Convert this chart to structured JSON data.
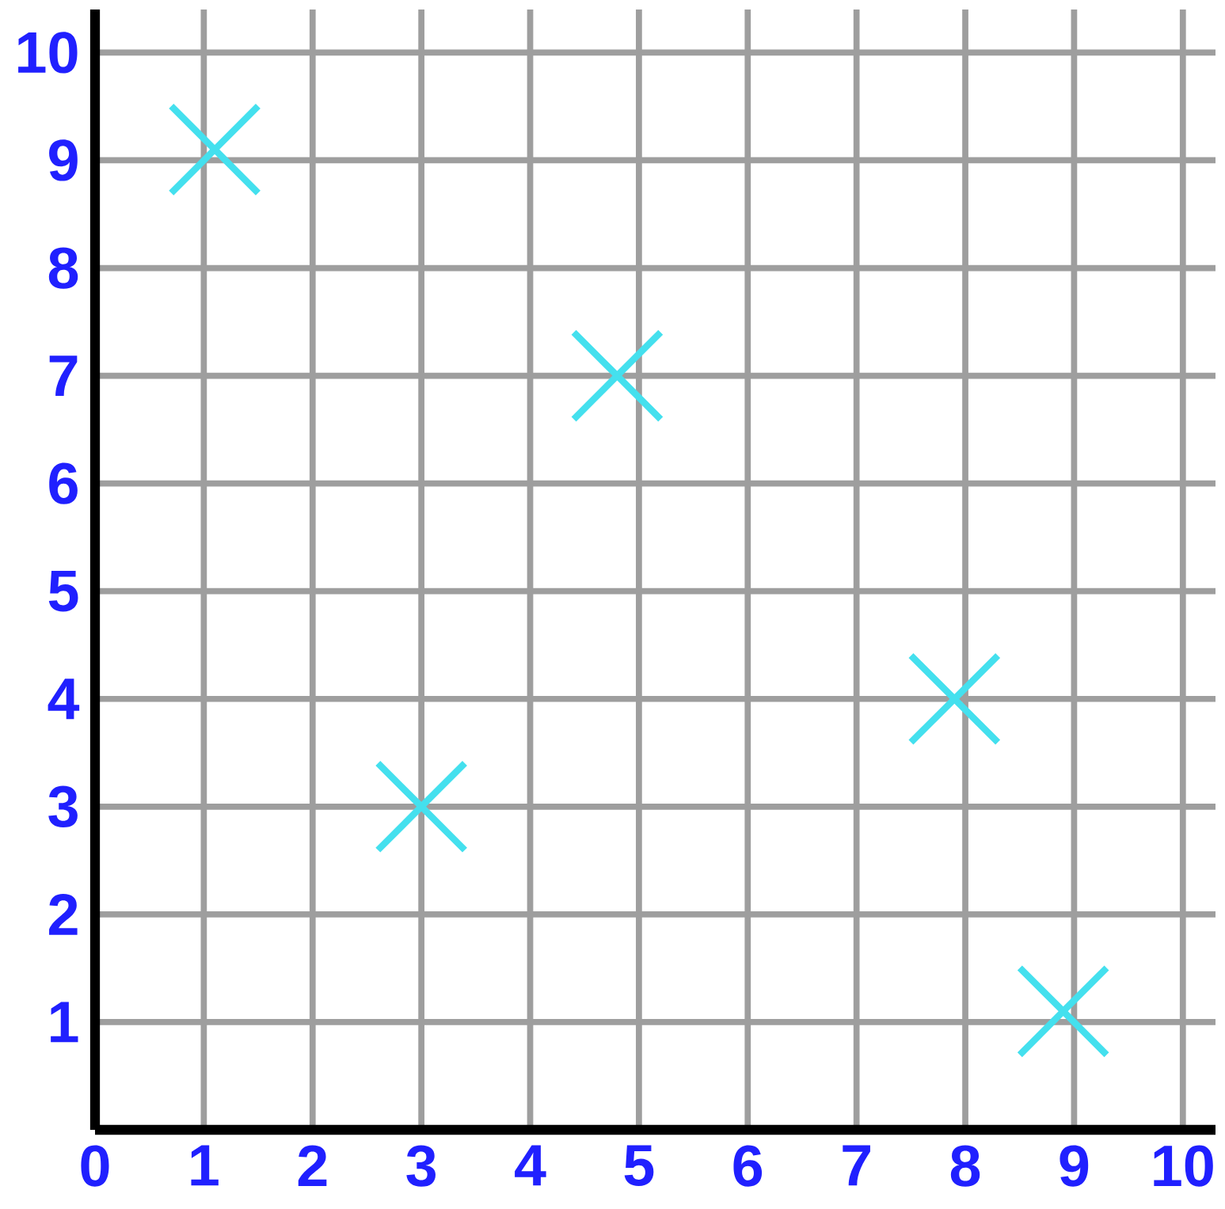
{
  "chart_data": {
    "type": "scatter",
    "x": [
      1.1,
      3,
      4.8,
      7.9,
      8.9
    ],
    "values": [
      9.1,
      3,
      7,
      4,
      1.1
    ],
    "color": "#44e0ee",
    "marker": "cross",
    "grid": true,
    "xlim": [
      0,
      10.3
    ],
    "ylim": [
      0,
      10.4
    ],
    "xticks": [
      0,
      1,
      2,
      3,
      4,
      5,
      6,
      7,
      8,
      9,
      10
    ],
    "yticks": [
      1,
      2,
      3,
      4,
      5,
      6,
      7,
      8,
      9,
      10
    ]
  }
}
